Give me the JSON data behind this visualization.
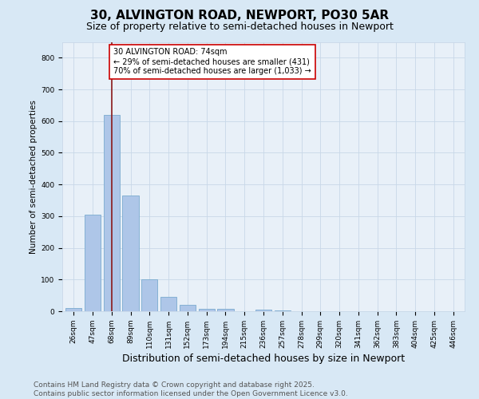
{
  "title": "30, ALVINGTON ROAD, NEWPORT, PO30 5AR",
  "subtitle": "Size of property relative to semi-detached houses in Newport",
  "xlabel": "Distribution of semi-detached houses by size in Newport",
  "ylabel": "Number of semi-detached properties",
  "categories": [
    "26sqm",
    "47sqm",
    "68sqm",
    "89sqm",
    "110sqm",
    "131sqm",
    "152sqm",
    "173sqm",
    "194sqm",
    "215sqm",
    "236sqm",
    "257sqm",
    "278sqm",
    "299sqm",
    "320sqm",
    "341sqm",
    "362sqm",
    "383sqm",
    "404sqm",
    "425sqm",
    "446sqm"
  ],
  "values": [
    10,
    305,
    620,
    365,
    100,
    45,
    20,
    8,
    8,
    0,
    5,
    3,
    0,
    0,
    0,
    0,
    0,
    0,
    0,
    0,
    0
  ],
  "bar_color": "#aec6e8",
  "bar_edge_color": "#7aabcf",
  "bar_width": 0.85,
  "vline_color": "#8b1a1a",
  "vline_x_index": 2.0,
  "annotation_text": "30 ALVINGTON ROAD: 74sqm\n← 29% of semi-detached houses are smaller (431)\n70% of semi-detached houses are larger (1,033) →",
  "annotation_box_color": "#ffffff",
  "annotation_box_edge": "#cc0000",
  "ylim": [
    0,
    850
  ],
  "yticks": [
    0,
    100,
    200,
    300,
    400,
    500,
    600,
    700,
    800
  ],
  "grid_color": "#c8d8e8",
  "background_color": "#d8e8f5",
  "plot_bg_color": "#e8f0f8",
  "footer_line1": "Contains HM Land Registry data © Crown copyright and database right 2025.",
  "footer_line2": "Contains public sector information licensed under the Open Government Licence v3.0.",
  "title_fontsize": 11,
  "subtitle_fontsize": 9,
  "xlabel_fontsize": 9,
  "ylabel_fontsize": 7.5,
  "tick_fontsize": 6.5,
  "annotation_fontsize": 7,
  "footer_fontsize": 6.5
}
